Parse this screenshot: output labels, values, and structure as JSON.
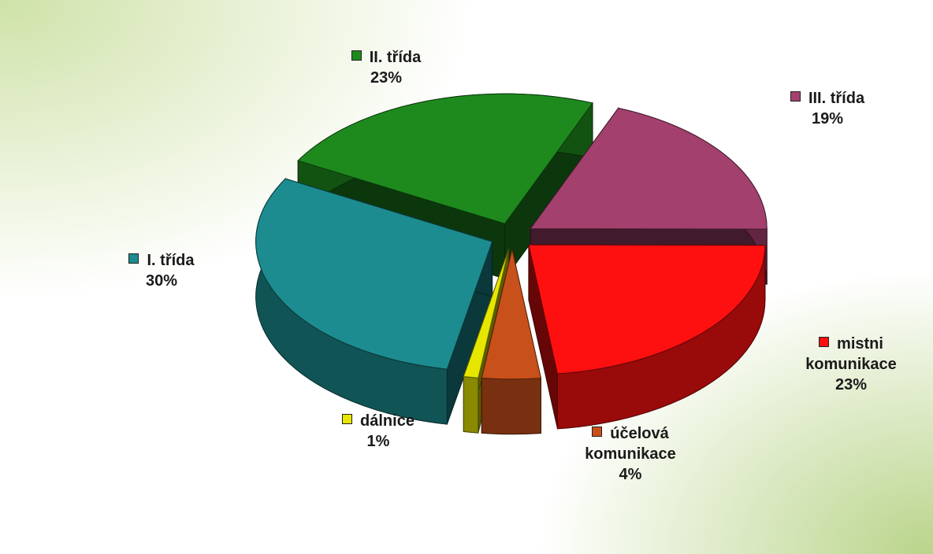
{
  "chart_data": {
    "type": "pie",
    "categories": [
      "II. třída",
      "III. třída",
      "mistni komunikace",
      "účelová komunikace",
      "dálnice",
      "I. třída"
    ],
    "values": [
      23,
      19,
      23,
      4,
      1,
      30
    ],
    "value_labels": [
      "23%",
      "19%",
      "23%",
      "4%",
      "1%",
      "30%"
    ],
    "colors": [
      "#1e8a1e",
      "#a3406e",
      "#ff1010",
      "#c8501a",
      "#e6e600",
      "#1c8c90"
    ]
  }
}
